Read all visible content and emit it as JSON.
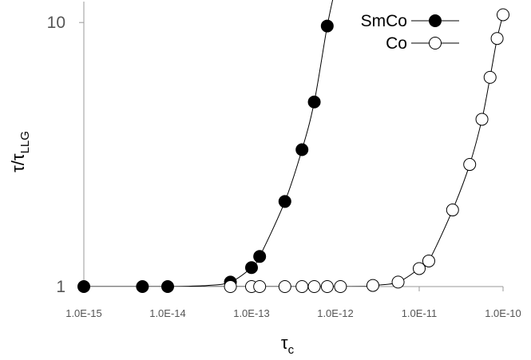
{
  "chart_data": {
    "type": "line",
    "xscale": "log",
    "yscale": "log",
    "xlim": [
      1e-15,
      1e-10
    ],
    "ylim": [
      1,
      12
    ],
    "x_ticks": [
      {
        "value": 1e-15,
        "label": "1.0E-15"
      },
      {
        "value": 1e-14,
        "label": "1.0E-14"
      },
      {
        "value": 1e-13,
        "label": "1.0E-13"
      },
      {
        "value": 1e-12,
        "label": "1.0E-12"
      },
      {
        "value": 1e-11,
        "label": "1.0E-11"
      },
      {
        "value": 1e-10,
        "label": "1.0E-10"
      }
    ],
    "y_ticks": [
      {
        "value": 1,
        "label": "1"
      },
      {
        "value": 10,
        "label": "10"
      }
    ],
    "xlabel": {
      "main": "τ",
      "sub": "c"
    },
    "ylabel": {
      "main": "τ/τ",
      "sub": "LLG"
    },
    "grid": false,
    "legend_position": "top-right",
    "series": [
      {
        "name": "SmCo",
        "marker": "filled-circle",
        "color": "#000000",
        "points": [
          [
            1e-15,
            1.0
          ],
          [
            5e-15,
            1.0
          ],
          [
            1e-14,
            1.0
          ],
          [
            5.6e-14,
            1.04
          ],
          [
            1e-13,
            1.18
          ],
          [
            1.25e-13,
            1.3
          ],
          [
            2.5e-13,
            2.1
          ],
          [
            4e-13,
            3.3
          ],
          [
            5.6e-13,
            5.0
          ],
          [
            8e-13,
            9.7
          ]
        ],
        "curve": [
          [
            1e-15,
            1.0
          ],
          [
            1e-14,
            1.0
          ],
          [
            3e-14,
            1.01
          ],
          [
            5.6e-14,
            1.04
          ],
          [
            1e-13,
            1.18
          ],
          [
            1.25e-13,
            1.3
          ],
          [
            2.5e-13,
            2.1
          ],
          [
            4e-13,
            3.3
          ],
          [
            5.6e-13,
            5.0
          ],
          [
            8e-13,
            9.7
          ],
          [
            1e-12,
            13.5
          ]
        ]
      },
      {
        "name": "Co",
        "marker": "open-circle",
        "color": "#000000",
        "points": [
          [
            5.6e-14,
            1.0
          ],
          [
            1e-13,
            1.0
          ],
          [
            1.25e-13,
            1.0
          ],
          [
            2.5e-13,
            1.0
          ],
          [
            4e-13,
            1.0
          ],
          [
            5.6e-13,
            1.0
          ],
          [
            8e-13,
            1.0
          ],
          [
            1.15e-12,
            1.0
          ],
          [
            2.8e-12,
            1.01
          ],
          [
            5.6e-12,
            1.04
          ],
          [
            1e-11,
            1.17
          ],
          [
            1.3e-11,
            1.25
          ],
          [
            2.5e-11,
            1.95
          ],
          [
            4e-11,
            2.9
          ],
          [
            5.6e-11,
            4.3
          ],
          [
            7e-11,
            6.2
          ],
          [
            8.5e-11,
            8.7
          ],
          [
            1e-10,
            10.7
          ]
        ],
        "curve": [
          [
            1e-15,
            1.0
          ],
          [
            1.15e-12,
            1.0
          ],
          [
            2.8e-12,
            1.01
          ],
          [
            5.6e-12,
            1.04
          ],
          [
            1e-11,
            1.17
          ],
          [
            1.3e-11,
            1.25
          ],
          [
            2.5e-11,
            1.95
          ],
          [
            4e-11,
            2.9
          ],
          [
            5.6e-11,
            4.3
          ],
          [
            7e-11,
            6.2
          ],
          [
            8.5e-11,
            8.7
          ],
          [
            1e-10,
            10.7
          ]
        ]
      }
    ]
  }
}
